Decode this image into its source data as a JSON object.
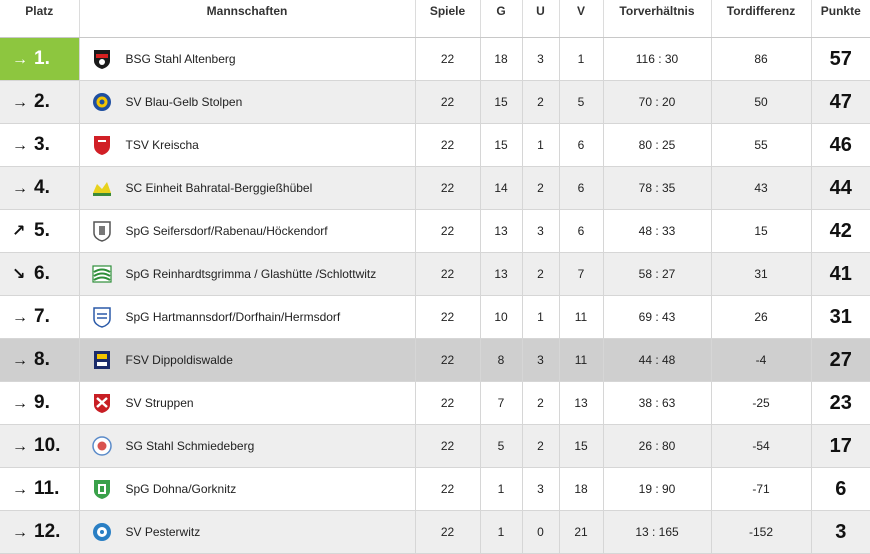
{
  "header": {
    "platz": "Platz",
    "mannschaften": "Mannschaften",
    "spiele": "Spiele",
    "g": "G",
    "u": "U",
    "v": "V",
    "torverhaeltnis": "Torverhältnis",
    "tordifferenz": "Tordifferenz",
    "punkte": "Punkte"
  },
  "rows": [
    {
      "trend": "→",
      "platz": "1.",
      "team": "BSG Stahl Altenberg",
      "spiele": "22",
      "g": "18",
      "u": "3",
      "v": "1",
      "tore": "116 : 30",
      "diff": "86",
      "punkte": "57",
      "crest": "crest-black-red"
    },
    {
      "trend": "→",
      "platz": "2.",
      "team": "SV Blau-Gelb Stolpen",
      "spiele": "22",
      "g": "15",
      "u": "2",
      "v": "5",
      "tore": "70 : 20",
      "diff": "50",
      "punkte": "47",
      "crest": "crest-blue-yellow"
    },
    {
      "trend": "→",
      "platz": "3.",
      "team": "TSV Kreischa",
      "spiele": "22",
      "g": "15",
      "u": "1",
      "v": "6",
      "tore": "80 : 25",
      "diff": "55",
      "punkte": "46",
      "crest": "crest-red-shield"
    },
    {
      "trend": "→",
      "platz": "4.",
      "team": "SC Einheit Bahratal-Berggießhübel",
      "spiele": "22",
      "g": "14",
      "u": "2",
      "v": "6",
      "tore": "78 : 35",
      "diff": "43",
      "punkte": "44",
      "crest": "crest-yellow-green"
    },
    {
      "trend": "↗",
      "platz": "5.",
      "team": "SpG Seifersdorf/Rabenau/Höckendorf",
      "spiele": "22",
      "g": "13",
      "u": "3",
      "v": "6",
      "tore": "48 : 33",
      "diff": "15",
      "punkte": "42",
      "crest": "crest-grey-shield"
    },
    {
      "trend": "↘",
      "platz": "6.",
      "team": "SpG Reinhardtsgrimma / Glashütte /Schlottwitz",
      "spiele": "22",
      "g": "13",
      "u": "2",
      "v": "7",
      "tore": "58 : 27",
      "diff": "31",
      "punkte": "41",
      "crest": "crest-green-white"
    },
    {
      "trend": "→",
      "platz": "7.",
      "team": "SpG Hartmannsdorf/Dorfhain/Hermsdorf",
      "spiele": "22",
      "g": "10",
      "u": "1",
      "v": "11",
      "tore": "69 : 43",
      "diff": "26",
      "punkte": "31",
      "crest": "crest-blue-white"
    },
    {
      "trend": "→",
      "platz": "8.",
      "team": "FSV Dippoldiswalde",
      "spiele": "22",
      "g": "8",
      "u": "3",
      "v": "11",
      "tore": "44 : 48",
      "diff": "-4",
      "punkte": "27",
      "crest": "crest-navy-yellow"
    },
    {
      "trend": "→",
      "platz": "9.",
      "team": "SV Struppen",
      "spiele": "22",
      "g": "7",
      "u": "2",
      "v": "13",
      "tore": "38 : 63",
      "diff": "-25",
      "punkte": "23",
      "crest": "crest-red-white"
    },
    {
      "trend": "→",
      "platz": "10.",
      "team": "SG Stahl Schmiedeberg",
      "spiele": "22",
      "g": "5",
      "u": "2",
      "v": "15",
      "tore": "26 : 80",
      "diff": "-54",
      "punkte": "17",
      "crest": "crest-blue-circle"
    },
    {
      "trend": "→",
      "platz": "11.",
      "team": "SpG Dohna/Gorknitz",
      "spiele": "22",
      "g": "1",
      "u": "3",
      "v": "18",
      "tore": "19 : 90",
      "diff": "-71",
      "punkte": "6",
      "crest": "crest-green-shield"
    },
    {
      "trend": "→",
      "platz": "12.",
      "team": "SV Pesterwitz",
      "spiele": "22",
      "g": "1",
      "u": "0",
      "v": "21",
      "tore": "13 : 165",
      "diff": "-152",
      "punkte": "3",
      "crest": "crest-blue-round"
    }
  ],
  "colors": {
    "leader": "#8dc63f",
    "highlight": "#cfcfcf",
    "stripe": "#eeeeee"
  }
}
